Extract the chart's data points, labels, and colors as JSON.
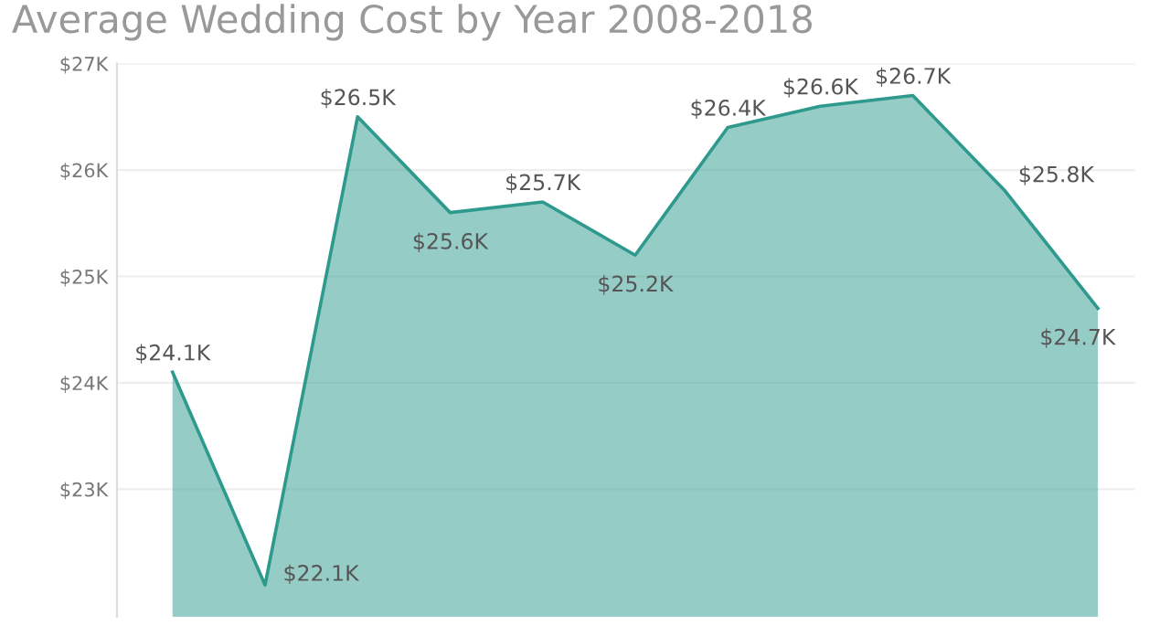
{
  "chart_data": {
    "type": "area",
    "title": "Average Wedding Cost by Year 2008-2018",
    "categories": [
      null,
      null,
      null,
      null,
      null,
      null,
      null,
      null,
      null,
      null,
      null
    ],
    "series": [
      {
        "color": "#2e9a8e",
        "values": [
          24.1,
          22.1,
          26.5,
          25.6,
          25.7,
          25.2,
          26.4,
          26.6,
          26.7,
          25.8,
          24.7
        ],
        "value_labels": [
          "$24.1K",
          "$22.1K",
          "$26.5K",
          "$25.6K",
          "$25.7K",
          "$25.2K",
          "$26.4K",
          "$26.6K",
          "$26.7K",
          "$25.8K",
          "$24.7K"
        ]
      }
    ],
    "ylim": [
      21.8,
      27
    ],
    "yticks": [
      {
        "value": 23,
        "label": "$23K"
      },
      {
        "value": 24,
        "label": "$24K"
      },
      {
        "value": 25,
        "label": "$25K"
      },
      {
        "value": 26,
        "label": "$26K"
      },
      {
        "value": 27,
        "label": "$27K"
      }
    ],
    "grid": "y"
  }
}
